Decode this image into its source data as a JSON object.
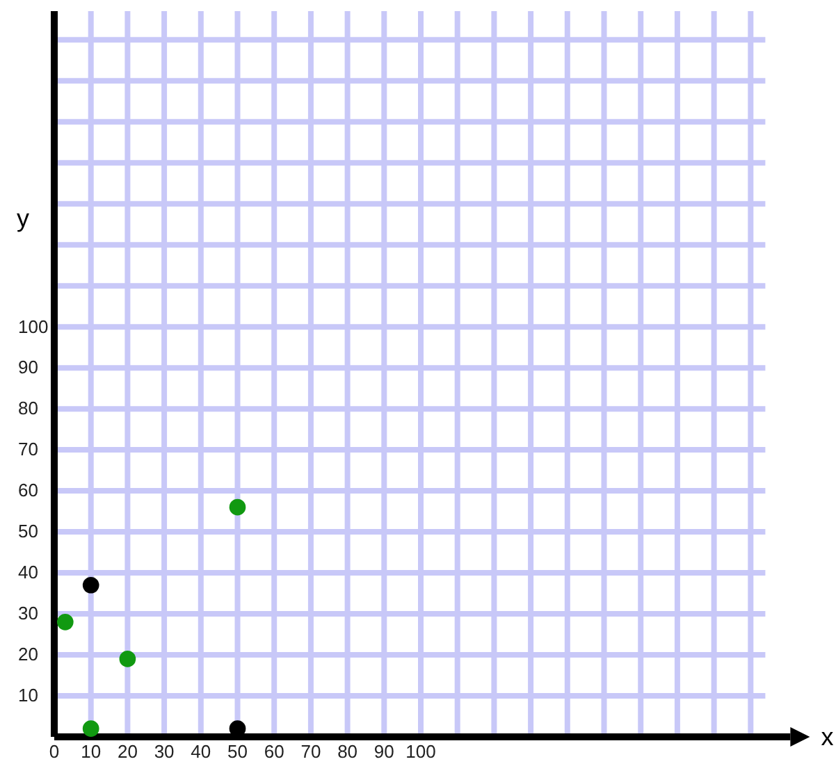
{
  "chart_data": {
    "type": "scatter",
    "xlabel": "x",
    "ylabel": "y",
    "xlim": [
      0,
      194
    ],
    "ylim": [
      0,
      177
    ],
    "xticks": [
      0,
      10,
      20,
      30,
      40,
      50,
      60,
      70,
      80,
      90,
      100,
      {
        "value": 110,
        "label": null
      },
      {
        "value": 120,
        "label": null
      },
      {
        "value": 130,
        "label": null
      },
      {
        "value": 140,
        "label": null
      },
      {
        "value": 150,
        "label": null
      },
      {
        "value": 160,
        "label": null
      },
      {
        "value": 170,
        "label": null
      },
      {
        "value": 180,
        "label": null
      },
      {
        "value": 190,
        "label": null
      }
    ],
    "yticks": [
      {
        "value": 0,
        "label": null
      },
      10,
      20,
      30,
      40,
      50,
      60,
      70,
      80,
      90,
      100,
      {
        "value": 110,
        "label": null
      },
      {
        "value": 120,
        "label": null
      },
      {
        "value": 130,
        "label": null
      },
      {
        "value": 140,
        "label": null
      },
      {
        "value": 150,
        "label": null
      },
      {
        "value": 160,
        "label": null
      },
      {
        "value": 170,
        "label": null
      }
    ],
    "grid": true,
    "marker": "circle",
    "series": [
      {
        "color": "#000000",
        "x": [
          10,
          50
        ],
        "values": [
          37,
          2
        ]
      },
      {
        "color": "#119911",
        "x": [
          3,
          20,
          10,
          50
        ],
        "values": [
          28,
          19,
          2,
          56
        ]
      }
    ]
  }
}
